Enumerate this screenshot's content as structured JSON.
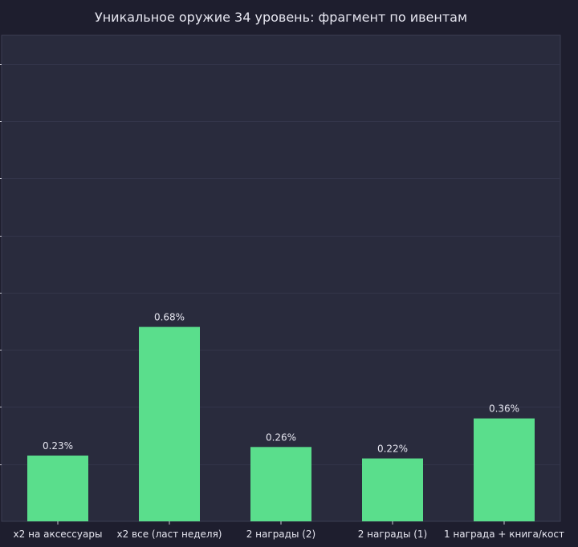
{
  "chart_data": {
    "type": "bar",
    "title": "Уникальное оружие 34 уровень: фрагмент по ивентам",
    "xlabel": "",
    "ylabel": "",
    "categories": [
      "x2 на аксессуары",
      "x2 все (ласт неделя)",
      "2 награды (2)",
      "2 награды (1)",
      "1 награда + книга/кост"
    ],
    "values": [
      0.23,
      0.68,
      0.26,
      0.22,
      0.36
    ],
    "value_labels": [
      "0.23%",
      "0.68%",
      "0.26%",
      "0.22%",
      "0.36%"
    ],
    "ylim": [
      0,
      1.7
    ],
    "grid": true,
    "colors": {
      "page_bg": "#1e1e2e",
      "plot_bg": "#292b3d",
      "bar": "#5ade8c",
      "grid": "#33354a",
      "text": "#e6e6f0",
      "axis": "#3c3e52",
      "tick": "#c8c8d2"
    }
  }
}
